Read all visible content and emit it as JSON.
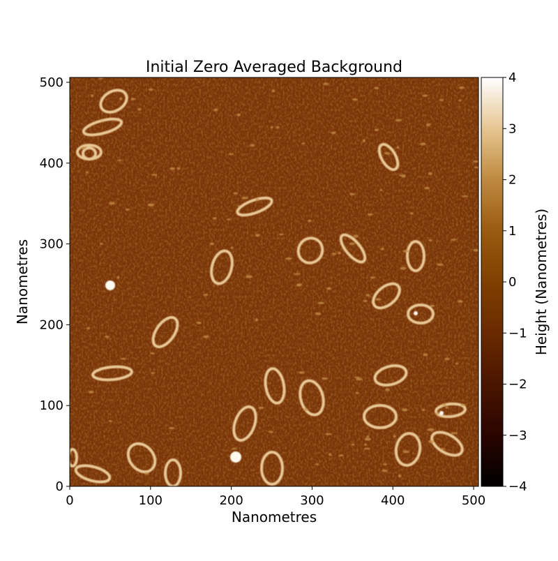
{
  "chart_data": {
    "type": "heatmap",
    "title": "Initial Zero Averaged Background",
    "xlabel": "Nanometres",
    "ylabel": "Nanometres",
    "xlim": [
      0,
      506
    ],
    "ylim": [
      0,
      506
    ],
    "xticks": [
      "0",
      "100",
      "200",
      "300",
      "400",
      "500"
    ],
    "yticks": [
      "0",
      "100",
      "200",
      "300",
      "400",
      "500"
    ],
    "colorbar": {
      "label": "Height (Nanometres)",
      "range": [
        -4,
        4
      ],
      "ticks": [
        "−4",
        "−3",
        "−2",
        "−1",
        "0",
        "1",
        "2",
        "3",
        "4"
      ],
      "colormap": [
        "#000000",
        "#2a0500",
        "#4a1500",
        "#6a2a00",
        "#7f3f00",
        "#9a5a10",
        "#bf8a40",
        "#e6c592",
        "#ffffff"
      ]
    },
    "grid": false
  }
}
